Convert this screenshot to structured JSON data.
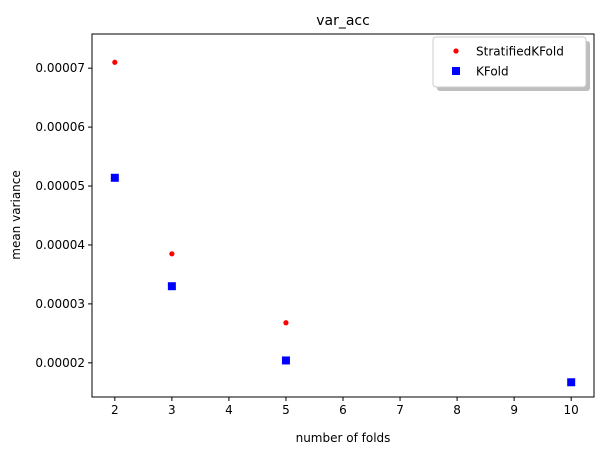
{
  "chart_data": {
    "type": "scatter",
    "title": "var_acc",
    "xlabel": "number of folds",
    "ylabel": "mean variance",
    "xlim": [
      1.6,
      10.4
    ],
    "ylim": [
      1.42e-05,
      7.58e-05
    ],
    "xticks": [
      2,
      3,
      4,
      5,
      6,
      7,
      8,
      9,
      10
    ],
    "xtick_labels": [
      "2",
      "3",
      "4",
      "5",
      "6",
      "7",
      "8",
      "9",
      "10"
    ],
    "yticks": [
      2e-05,
      3e-05,
      4e-05,
      5e-05,
      6e-05,
      7e-05
    ],
    "ytick_labels": [
      "0.00002",
      "0.00003",
      "0.00004",
      "0.00005",
      "0.00006",
      "0.00007"
    ],
    "grid": false,
    "legend_position": "top-right",
    "series": [
      {
        "name": "StratifiedKFold",
        "marker": "dot",
        "color": "#ff0000",
        "x": [
          2,
          3,
          5
        ],
        "y": [
          7.1e-05,
          3.85e-05,
          2.68e-05
        ]
      },
      {
        "name": "KFold",
        "marker": "square",
        "color": "#0000ff",
        "x": [
          2,
          3,
          5,
          10
        ],
        "y": [
          5.14e-05,
          3.3e-05,
          2.04e-05,
          1.67e-05
        ]
      }
    ]
  }
}
